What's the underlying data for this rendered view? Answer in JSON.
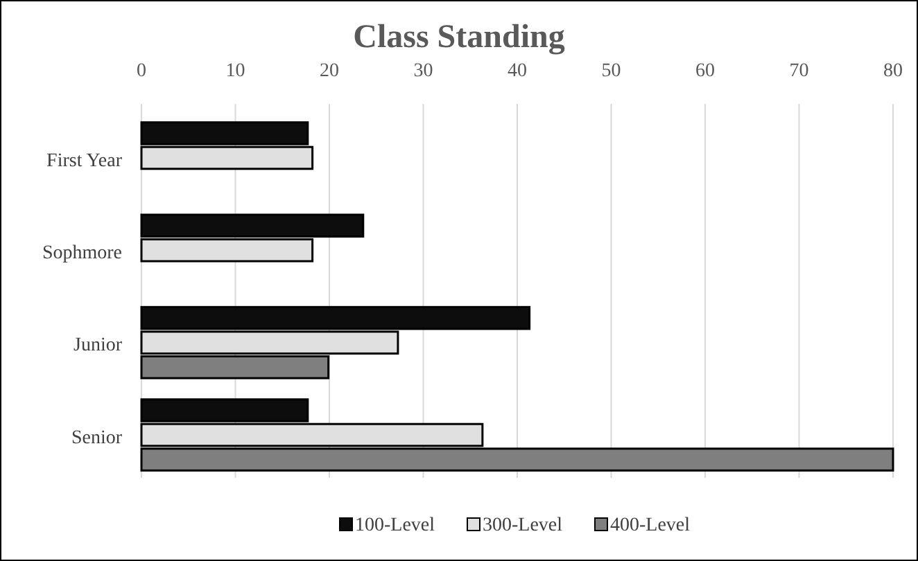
{
  "chart_data": {
    "type": "bar",
    "orientation": "horizontal",
    "title": "Class Standing",
    "categories": [
      "First Year",
      "Sophmore",
      "Junior",
      "Senior"
    ],
    "series": [
      {
        "name": "100-Level",
        "color": "#0d0d0d",
        "values": [
          17.7,
          23.6,
          41.3,
          17.7
        ]
      },
      {
        "name": "300-Level",
        "color": "#e0e0e0",
        "values": [
          18.2,
          18.2,
          27.3,
          36.3
        ]
      },
      {
        "name": "400-Level",
        "color": "#7f7f7f",
        "values": [
          null,
          null,
          19.9,
          80
        ]
      }
    ],
    "xlim": [
      0,
      80
    ],
    "xticks": [
      0,
      10,
      20,
      30,
      40,
      50,
      60,
      70,
      80
    ],
    "grid": "x",
    "legend": "bottom"
  }
}
